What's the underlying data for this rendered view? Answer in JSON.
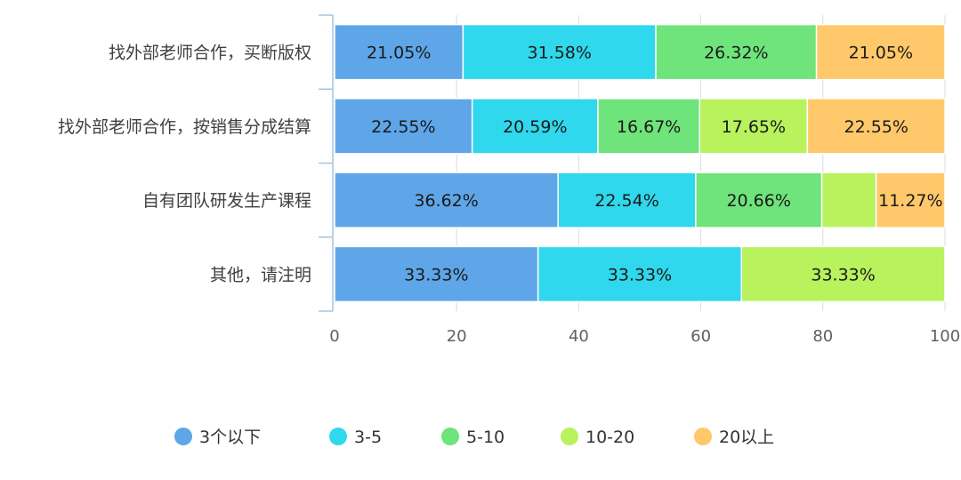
{
  "chart_data": {
    "type": "bar",
    "orientation": "horizontal",
    "stacked": true,
    "categories": [
      "找外部老师合作，买断版权",
      "找外部老师合作，按销售分成结算",
      "自有团队研发生产课程",
      "其他，请注明"
    ],
    "series": [
      {
        "name": "3个以下",
        "color": "#5ea6e8",
        "values": [
          21.05,
          22.55,
          36.62,
          33.33
        ]
      },
      {
        "name": "3-5",
        "color": "#2fd8ec",
        "values": [
          31.58,
          20.59,
          22.54,
          33.33
        ]
      },
      {
        "name": "5-10",
        "color": "#6ee47b",
        "values": [
          26.32,
          16.67,
          20.66,
          0
        ]
      },
      {
        "name": "10-20",
        "color": "#b8f25c",
        "values": [
          0,
          17.65,
          8.91,
          33.33
        ]
      },
      {
        "name": "20以上",
        "color": "#ffc86a",
        "values": [
          21.05,
          22.55,
          11.27,
          0
        ]
      }
    ],
    "data_labels": [
      [
        "21.05%",
        "31.58%",
        "26.32%",
        "",
        "21.05%"
      ],
      [
        "22.55%",
        "20.59%",
        "16.67%",
        "17.65%",
        "22.55%"
      ],
      [
        "36.62%",
        "22.54%",
        "20.66%",
        "",
        "11.27%"
      ],
      [
        "33.33%",
        "33.33%",
        "",
        "33.33%",
        ""
      ]
    ],
    "x_ticks": [
      "0",
      "20",
      "40",
      "60",
      "80",
      "100"
    ],
    "xlim": [
      0,
      100
    ],
    "grid": "vertical",
    "legend": "bottom-center",
    "title": "",
    "xlabel": "",
    "ylabel": ""
  }
}
